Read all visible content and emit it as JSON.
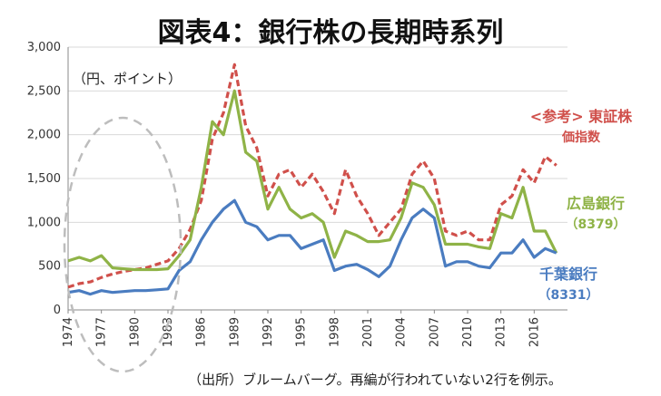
{
  "chart_data": {
    "type": "line",
    "title": "図表4：銀行株の長期時系列",
    "unit_label": "（円、ポイント）",
    "note": "（出所）ブルームバーグ。再編が行われていない2行を例示。",
    "y_ticks": [
      "0",
      "500",
      "1,000",
      "1,500",
      "2,000",
      "2,500",
      "3,000"
    ],
    "ylim": [
      0,
      3000
    ],
    "x_ticks": [
      "1974",
      "1977",
      "1980",
      "1983",
      "1986",
      "1989",
      "1992",
      "1995",
      "1998",
      "2001",
      "2004",
      "2007",
      "2010",
      "2013",
      "2016"
    ],
    "xlim": [
      1974,
      2019
    ],
    "grid": true,
    "x": [
      1974,
      1975,
      1976,
      1977,
      1978,
      1979,
      1980,
      1981,
      1982,
      1983,
      1984,
      1985,
      1986,
      1987,
      1988,
      1989,
      1990,
      1991,
      1992,
      1993,
      1994,
      1995,
      1996,
      1997,
      1998,
      1999,
      2000,
      2001,
      2002,
      2003,
      2004,
      2005,
      2006,
      2007,
      2008,
      2009,
      2010,
      2011,
      2012,
      2013,
      2014,
      2015,
      2016,
      2017,
      2018
    ],
    "series": [
      {
        "name": "東証株価指数",
        "label_lines": [
          "<参考> 東証株",
          "価指数"
        ],
        "color": "#d0504b",
        "dashed": true,
        "values": [
          260,
          300,
          320,
          370,
          410,
          440,
          460,
          480,
          520,
          560,
          700,
          920,
          1250,
          1950,
          2250,
          2800,
          2100,
          1850,
          1300,
          1550,
          1600,
          1400,
          1550,
          1350,
          1100,
          1600,
          1300,
          1100,
          850,
          1000,
          1150,
          1550,
          1700,
          1500,
          900,
          850,
          900,
          800,
          800,
          1200,
          1300,
          1600,
          1450,
          1750,
          1650
        ]
      },
      {
        "name": "広島銀行",
        "label_lines": [
          "広島銀行",
          "（8379）"
        ],
        "color": "#8fb347",
        "dashed": false,
        "values": [
          560,
          600,
          560,
          620,
          480,
          470,
          460,
          460,
          460,
          470,
          620,
          800,
          1400,
          2150,
          2000,
          2500,
          1800,
          1700,
          1150,
          1400,
          1150,
          1050,
          1100,
          1000,
          600,
          900,
          850,
          780,
          780,
          800,
          1050,
          1450,
          1400,
          1200,
          750,
          750,
          750,
          720,
          700,
          1100,
          1050,
          1400,
          900,
          900,
          650
        ]
      },
      {
        "name": "千葉銀行",
        "label_lines": [
          "千葉銀行",
          "（8331）"
        ],
        "color": "#4a7cc0",
        "dashed": false,
        "values": [
          200,
          220,
          180,
          220,
          200,
          210,
          220,
          220,
          230,
          240,
          450,
          550,
          800,
          1000,
          1150,
          1250,
          1000,
          950,
          800,
          850,
          850,
          700,
          750,
          800,
          450,
          500,
          520,
          460,
          380,
          500,
          800,
          1050,
          1150,
          1050,
          500,
          550,
          550,
          500,
          480,
          650,
          650,
          800,
          600,
          700,
          650
        ]
      }
    ]
  }
}
